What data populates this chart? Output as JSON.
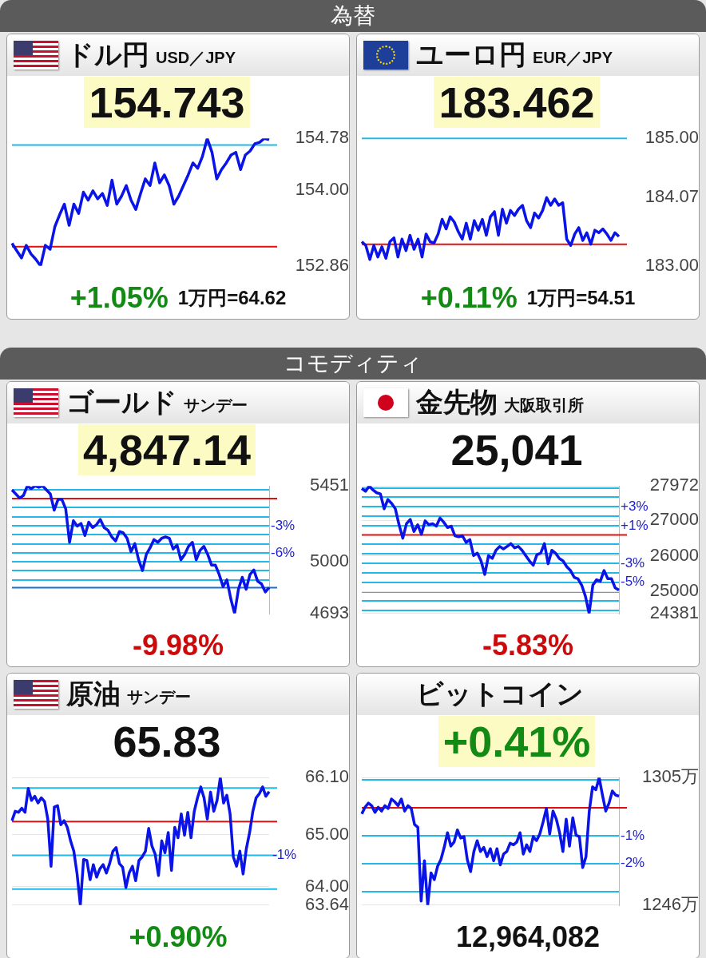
{
  "chart_data": [
    {
      "type": "other",
      "title": "為替"
    },
    {
      "type": "line",
      "title": "ドル円",
      "subtitle": "USD／JPY",
      "annotations": [
        "154.743",
        "+1.05%",
        "1万円=64.62"
      ],
      "categories": [
        null,
        null,
        null,
        null,
        null,
        null,
        null,
        null,
        null,
        null,
        null,
        null,
        null,
        null,
        null,
        null,
        null,
        null,
        null,
        null,
        null,
        null,
        null,
        null,
        null,
        null,
        null,
        null,
        null,
        null,
        null,
        null,
        null,
        null,
        null,
        null,
        null,
        null,
        null,
        null,
        null,
        null,
        null,
        null,
        null,
        null,
        null,
        null,
        null,
        null,
        null,
        null,
        null,
        null,
        null
      ],
      "series": [
        {
          "color": "#0a14e6",
          "values": [
            153.2,
            153.09,
            152.98,
            153.17,
            153.04,
            152.96,
            152.86,
            153.17,
            153.11,
            153.45,
            153.63,
            153.79,
            153.47,
            153.79,
            153.65,
            153.97,
            153.85,
            153.99,
            153.87,
            153.95,
            153.77,
            154.15,
            153.79,
            153.91,
            154.07,
            153.85,
            153.71,
            153.95,
            154.17,
            154.07,
            154.41,
            154.11,
            154.23,
            154.07,
            153.79,
            153.91,
            154.07,
            154.23,
            154.41,
            154.33,
            154.51,
            154.78,
            154.57,
            154.17,
            154.31,
            154.41,
            154.53,
            154.57,
            154.31,
            154.53,
            154.59,
            154.7,
            154.72,
            154.78,
            154.76
          ]
        }
      ],
      "ylim": [
        152.86,
        154.78
      ],
      "yticks": [
        154.78,
        {
          "value": 154.0,
          "label": "154.00"
        },
        152.86
      ],
      "tick_labels": "y",
      "ref_lines": [
        {
          "axis": "y",
          "value": 153.15,
          "color": "#e01010"
        },
        {
          "axis": "y",
          "value": 154.68,
          "color": "#22b8e8"
        }
      ]
    },
    {
      "type": "line",
      "title": "ユーロ円",
      "subtitle": "EUR／JPY",
      "annotations": [
        "183.462",
        "+0.11%",
        "1万円=54.51"
      ],
      "categories": [
        null,
        null,
        null,
        null,
        null,
        null,
        null,
        null,
        null,
        null,
        null,
        null,
        null,
        null,
        null,
        null,
        null,
        null,
        null,
        null,
        null,
        null,
        null,
        null,
        null,
        null,
        null,
        null,
        null,
        null,
        null,
        null,
        null,
        null,
        null,
        null,
        null,
        null,
        null,
        null,
        null,
        null,
        null,
        null,
        null,
        null,
        null,
        null,
        null,
        null,
        null,
        null,
        null,
        null,
        null,
        null,
        null,
        null,
        null,
        null,
        null,
        null,
        null,
        null,
        null
      ],
      "series": [
        {
          "color": "#0a14e6",
          "values": [
            183.38,
            183.32,
            183.1,
            183.32,
            183.14,
            183.3,
            183.12,
            183.38,
            183.44,
            183.14,
            183.42,
            183.24,
            183.48,
            183.26,
            183.42,
            183.14,
            183.5,
            183.38,
            183.36,
            183.5,
            183.73,
            183.58,
            183.77,
            183.69,
            183.54,
            183.42,
            183.67,
            183.42,
            183.71,
            183.56,
            183.73,
            183.48,
            183.77,
            183.85,
            183.48,
            183.89,
            183.67,
            183.87,
            183.79,
            183.89,
            183.95,
            183.71,
            183.6,
            183.83,
            183.75,
            183.87,
            184.07,
            183.95,
            184.05,
            183.95,
            183.99,
            183.42,
            183.32,
            183.5,
            183.6,
            183.4,
            183.52,
            183.34,
            183.56,
            183.52,
            183.58,
            183.5,
            183.4,
            183.52,
            183.46
          ]
        }
      ],
      "ylim": [
        183,
        185
      ],
      "yticks": [
        {
          "value": 185,
          "label": "185.00"
        },
        184.07,
        {
          "value": 183,
          "label": "183.00"
        }
      ],
      "tick_labels": "y",
      "ref_lines": [
        {
          "axis": "y",
          "value": 183.34,
          "color": "#e01010"
        },
        {
          "axis": "y",
          "value": 185,
          "color": "#22b8e8"
        }
      ]
    },
    {
      "type": "other",
      "title": "コモディティ"
    },
    {
      "type": "line",
      "title": "ゴールド",
      "subtitle": "サンデー",
      "annotations": [
        "4,847.14",
        "-9.98%"
      ],
      "categories": [
        null,
        null,
        null,
        null,
        null,
        null,
        null,
        null,
        null,
        null,
        null,
        null,
        null,
        null,
        null,
        null,
        null,
        null,
        null,
        null,
        null,
        null,
        null,
        null,
        null,
        null,
        null,
        null,
        null,
        null,
        null,
        null,
        null,
        null,
        null,
        null,
        null,
        null,
        null,
        null,
        null,
        null,
        null,
        null,
        null,
        null,
        null,
        null,
        null,
        null,
        null,
        null,
        null,
        null,
        null,
        null,
        null,
        null,
        null,
        null,
        null,
        null,
        null,
        null,
        null,
        null,
        null,
        null
      ],
      "series": [
        {
          "color": "#0a14e6",
          "values": [
            5427,
            5403,
            5379,
            5395,
            5451,
            5435,
            5451,
            5443,
            5451,
            5427,
            5403,
            5307,
            5371,
            5371,
            5315,
            5116,
            5244,
            5212,
            5228,
            5156,
            5236,
            5204,
            5220,
            5252,
            5204,
            5188,
            5148,
            5124,
            5180,
            5172,
            5140,
            5060,
            5108,
            5012,
            4948,
            5044,
            5084,
            5132,
            5116,
            5140,
            5148,
            5140,
            5076,
            5100,
            5012,
            5044,
            5092,
            5116,
            5012,
            5068,
            5092,
            5044,
            4980,
            4980,
            4924,
            4853,
            4893,
            4781,
            4693,
            4837,
            4908,
            4837,
            4924,
            4952,
            4885,
            4869,
            4821,
            4847
          ]
        }
      ],
      "ylim": [
        4693,
        5451
      ],
      "yticks": [
        5451,
        5000,
        4693
      ],
      "tick_labels": "y",
      "grid": "y2",
      "y2lim": [
        -12.71,
        1.39
      ],
      "y2ticks": [
        {
          "value": 1,
          "label": null
        },
        {
          "value": -1,
          "label": null
        },
        {
          "value": -2,
          "label": null
        },
        {
          "value": -3,
          "label": "-3%"
        },
        {
          "value": -4,
          "label": null
        },
        {
          "value": -5,
          "label": null
        },
        {
          "value": -6,
          "label": "-6%"
        },
        {
          "value": -7,
          "label": null
        },
        {
          "value": -8,
          "label": null
        },
        {
          "value": -9,
          "label": null
        }
      ],
      "ref_lines": [
        {
          "axis": "y",
          "value": 5376,
          "color": "#e01010"
        },
        {
          "axis": "y",
          "value": 4847,
          "color": "#1a6fd0"
        }
      ]
    },
    {
      "type": "line",
      "title": "金先物",
      "subtitle": "大阪取引所",
      "annotations": [
        "25,041",
        "-5.83%"
      ],
      "categories": [
        null,
        null,
        null,
        null,
        null,
        null,
        null,
        null,
        null,
        null,
        null,
        null,
        null,
        null,
        null,
        null,
        null,
        null,
        null,
        null,
        null,
        null,
        null,
        null,
        null,
        null,
        null,
        null,
        null,
        null,
        null,
        null,
        null,
        null,
        null,
        null,
        null,
        null,
        null,
        null,
        null,
        null,
        null,
        null,
        null,
        null,
        null,
        null,
        null,
        null,
        null,
        null,
        null,
        null,
        null,
        null,
        null,
        null,
        null,
        null,
        null,
        null,
        null,
        null,
        null,
        null,
        null,
        null,
        null,
        null
      ],
      "series": [
        {
          "color": "#0a14e6",
          "values": [
            27900,
            27820,
            27970,
            27860,
            27780,
            27750,
            27330,
            27590,
            27480,
            27330,
            26880,
            26500,
            26910,
            27030,
            26690,
            26880,
            26610,
            26990,
            26880,
            26910,
            26840,
            27070,
            26950,
            26800,
            26840,
            26570,
            26540,
            26570,
            26380,
            26460,
            26010,
            26080,
            25860,
            25480,
            26010,
            25930,
            26160,
            26270,
            26200,
            26270,
            26350,
            26230,
            26270,
            26160,
            26010,
            25860,
            25740,
            26040,
            26080,
            26350,
            25780,
            26160,
            26080,
            25930,
            25860,
            25700,
            25590,
            25400,
            25360,
            25180,
            24870,
            24381,
            25180,
            25330,
            25290,
            25590,
            25360,
            25360,
            25100,
            25040
          ]
        }
      ],
      "ylim": [
        24381,
        27972
      ],
      "yticks": [
        27972,
        27000,
        26000,
        25000,
        24381
      ],
      "tick_labels": "y",
      "grid": "y",
      "y2lim": [
        -8.31,
        5.2
      ],
      "y2ticks": [
        {
          "value": 5,
          "label": null
        },
        {
          "value": 4,
          "label": null
        },
        {
          "value": 3,
          "label": "+3%"
        },
        {
          "value": 2,
          "label": null
        },
        {
          "value": 1,
          "label": "+1%"
        },
        {
          "value": -1,
          "label": null
        },
        {
          "value": -2,
          "label": null
        },
        {
          "value": -3,
          "label": "-3%"
        },
        {
          "value": -4,
          "label": null
        },
        {
          "value": -5,
          "label": "-5%"
        },
        {
          "value": -6,
          "label": null
        },
        {
          "value": -7,
          "label": null
        },
        {
          "value": -8,
          "label": null
        }
      ],
      "ref_lines": [
        {
          "axis": "y",
          "value": 26590,
          "color": "#e01010"
        }
      ]
    },
    {
      "type": "line",
      "title": "原油",
      "subtitle": "サンデー",
      "annotations": [
        "65.83",
        "+0.90%",
        "-1%"
      ],
      "categories": [
        null,
        null,
        null,
        null,
        null,
        null,
        null,
        null,
        null,
        null,
        null,
        null,
        null,
        null,
        null,
        null,
        null,
        null,
        null,
        null,
        null,
        null,
        null,
        null,
        null,
        null,
        null,
        null,
        null,
        null,
        null,
        null,
        null,
        null,
        null,
        null,
        null,
        null,
        null,
        null,
        null,
        null,
        null,
        null,
        null,
        null,
        null,
        null,
        null,
        null,
        null,
        null,
        null,
        null,
        null,
        null,
        null,
        null,
        null,
        null,
        null,
        null,
        null,
        null,
        null,
        null,
        null,
        null,
        null,
        null,
        null,
        null,
        null,
        null,
        null,
        null,
        null,
        null,
        null,
        null
      ],
      "series": [
        {
          "color": "#0a14e6",
          "values": [
            65.27,
            65.45,
            65.43,
            65.51,
            65.43,
            65.89,
            65.66,
            65.74,
            65.61,
            65.71,
            65.64,
            65.3,
            64.39,
            65.53,
            65.56,
            65.19,
            65.27,
            65.14,
            64.88,
            64.68,
            64.24,
            63.64,
            64.52,
            64.5,
            64.13,
            64.42,
            64.18,
            64.34,
            64.42,
            64.26,
            64.44,
            64.68,
            64.75,
            64.44,
            64.37,
            63.98,
            64.26,
            64.39,
            64.11,
            64.5,
            64.57,
            64.68,
            65.12,
            64.78,
            64.62,
            64.21,
            64.88,
            64.65,
            65.04,
            64.31,
            65.14,
            64.94,
            65.4,
            64.99,
            65.43,
            64.94,
            65.45,
            65.71,
            65.92,
            65.71,
            65.3,
            65.82,
            65.45,
            65.66,
            66.1,
            65.61,
            65.76,
            65.4,
            64.57,
            64.39,
            64.68,
            64.24,
            64.73,
            65.04,
            65.45,
            65.71,
            65.79,
            65.92,
            65.74,
            65.83
          ]
        }
      ],
      "ylim": [
        63.64,
        66.1
      ],
      "yticks": [
        {
          "value": 66.1,
          "label": "66.10"
        },
        {
          "value": 65,
          "label": "65.00"
        },
        {
          "value": 64,
          "label": "64.00"
        },
        63.64
      ],
      "tick_labels": "y",
      "grid": "y",
      "ref_lines": [
        {
          "axis": "y",
          "value": 65.25,
          "color": "#e01010"
        },
        {
          "axis": "y",
          "value": 65.9,
          "color": "#22b8e8"
        },
        {
          "axis": "y",
          "value": 64.6,
          "color": "#22b8e8"
        },
        {
          "axis": "y",
          "value": 63.95,
          "color": "#22b8e8"
        }
      ]
    },
    {
      "type": "line",
      "title": "ビットコイン",
      "annotations": [
        "+0.41%",
        "12,964,082"
      ],
      "categories": [
        null,
        null,
        null,
        null,
        null,
        null,
        null,
        null,
        null,
        null,
        null,
        null,
        null,
        null,
        null,
        null,
        null,
        null,
        null,
        null,
        null,
        null,
        null,
        null,
        null,
        null,
        null,
        null,
        null,
        null,
        null,
        null,
        null,
        null,
        null,
        null,
        null,
        null,
        null,
        null,
        null,
        null,
        null,
        null,
        null,
        null,
        null,
        null,
        null,
        null,
        null,
        null,
        null,
        null,
        null,
        null,
        null,
        null,
        null,
        null,
        null,
        null,
        null,
        null,
        null,
        null,
        null,
        null,
        null,
        null,
        null,
        null,
        null,
        null,
        null,
        null,
        null,
        null,
        null
      ],
      "series": [
        {
          "color": "#0a14e6",
          "values": [
            1288.2,
            1291.3,
            1293.2,
            1292.0,
            1288.9,
            1291.3,
            1289.5,
            1292.0,
            1290.7,
            1295.1,
            1293.8,
            1292.0,
            1295.1,
            1289.5,
            1292.0,
            1290.7,
            1283.3,
            1282.0,
            1247.9,
            1266.5,
            1246.0,
            1260.9,
            1257.8,
            1264.0,
            1267.1,
            1272.7,
            1279.5,
            1273.3,
            1275.2,
            1280.8,
            1277.0,
            1277.7,
            1267.1,
            1261.5,
            1270.8,
            1275.8,
            1270.8,
            1272.7,
            1268.4,
            1272.1,
            1266.5,
            1272.1,
            1264.6,
            1269.6,
            1270.8,
            1274.6,
            1273.9,
            1275.2,
            1279.5,
            1269.6,
            1273.9,
            1270.8,
            1277.7,
            1275.8,
            1278.9,
            1284.5,
            1290.7,
            1278.9,
            1289.5,
            1285.8,
            1279.5,
            1270.8,
            1285.8,
            1273.3,
            1286.4,
            1278.3,
            1277.7,
            1263.4,
            1268.4,
            1289.5,
            1300.7,
            1299.4,
            1305,
            1296.9,
            1289.5,
            1293.2,
            1298.8,
            1296.9,
            1296.4
          ]
        }
      ],
      "ylim": [
        1246,
        1305
      ],
      "yticks": [
        {
          "value": 1305,
          "label": "1305万"
        },
        {
          "value": 1246,
          "label": "1246万"
        }
      ],
      "tick_labels": "y",
      "grid": "y",
      "y2lim": [
        -3.49,
        1.08
      ],
      "y2ticks": [
        {
          "value": 1,
          "label": null
        },
        {
          "value": -1,
          "label": "-1%"
        },
        {
          "value": -2,
          "label": "-2%"
        },
        {
          "value": -3,
          "label": null
        }
      ],
      "ref_lines": [
        {
          "axis": "y",
          "value": 1291,
          "color": "#e01010"
        }
      ]
    }
  ]
}
